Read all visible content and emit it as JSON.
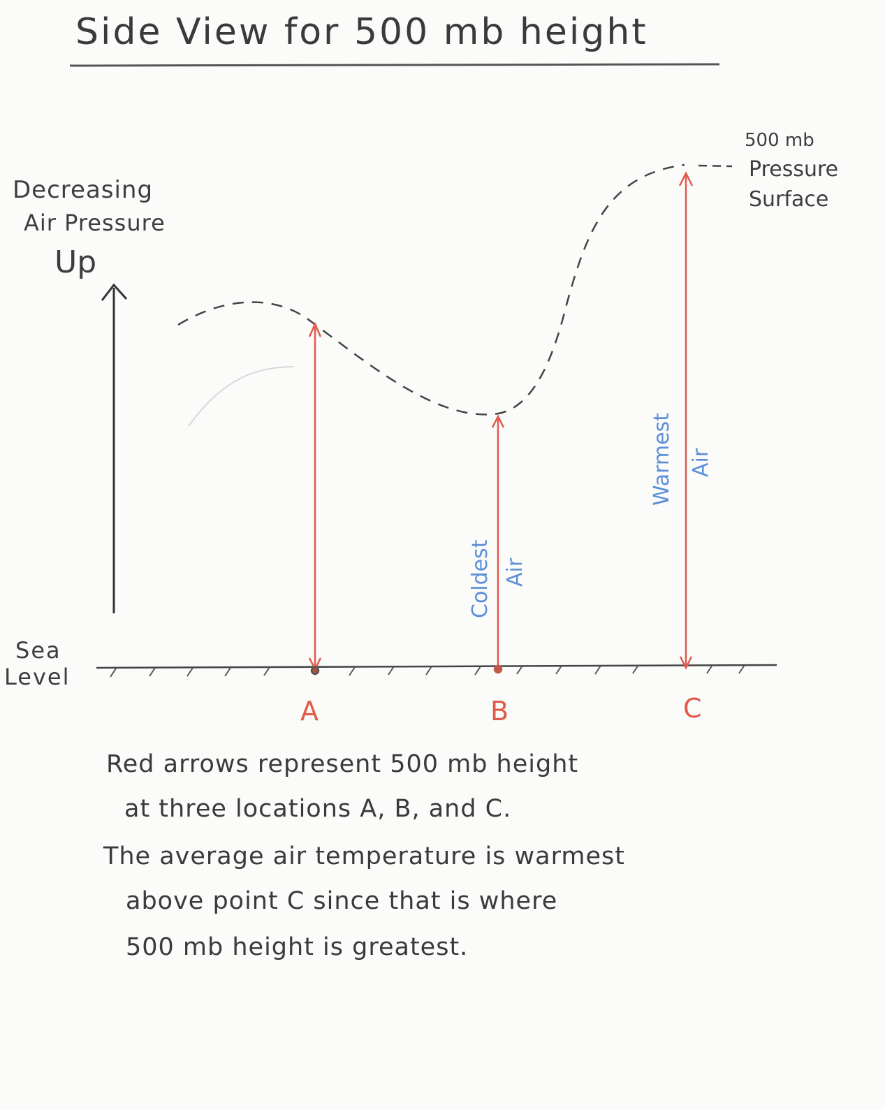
{
  "title": "Side View for 500 mb height",
  "pressure_surface_label": {
    "line1": "500 mb",
    "line2": "Pressure",
    "line3": "Surface"
  },
  "axis": {
    "line1": "Decreasing",
    "line2": "Air Pressure",
    "line3": "Up"
  },
  "sea_level": {
    "line1": "Sea",
    "line2": "Level"
  },
  "locations": {
    "a": "A",
    "b": "B",
    "c": "C"
  },
  "annotations": {
    "coldest_1": "Coldest",
    "coldest_2": "Air",
    "warmest_1": "Warmest",
    "warmest_2": "Air"
  },
  "caption": {
    "line1": "Red arrows represent 500 mb height",
    "line2": "at three locations A, B, and C.",
    "line3": "The average air temperature is warmest",
    "line4": "above point C since that is where",
    "line5": "500 mb height is greatest."
  },
  "colors": {
    "pencil": "#3d3d3d",
    "arrow_red": "#e05a4a",
    "label_blue": "#5b8fd8"
  }
}
